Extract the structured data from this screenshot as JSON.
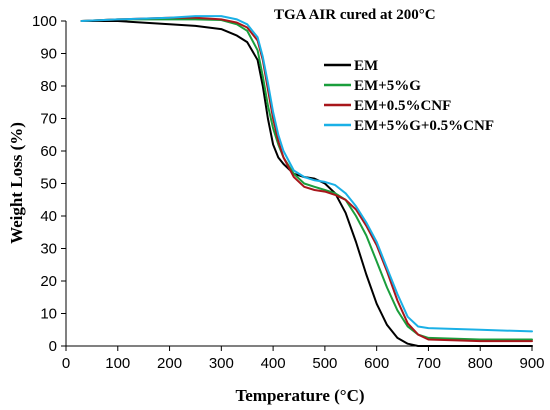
{
  "chart_data": {
    "type": "line",
    "title": "TGA AIR cured at 200°C",
    "xlabel": "Temperature (°C)",
    "ylabel": "Weight Loss (%)",
    "xlim": [
      0,
      900
    ],
    "ylim": [
      0,
      100
    ],
    "xticks": [
      0,
      100,
      200,
      300,
      400,
      500,
      600,
      700,
      800,
      900
    ],
    "yticks": [
      0,
      10,
      20,
      30,
      40,
      50,
      60,
      70,
      80,
      90,
      100
    ],
    "grid": false,
    "legend_position": "top-right",
    "series": [
      {
        "name": "EM",
        "color": "#000000",
        "x": [
          30,
          100,
          200,
          250,
          300,
          330,
          350,
          370,
          380,
          390,
          400,
          410,
          420,
          440,
          460,
          480,
          500,
          520,
          540,
          560,
          580,
          600,
          620,
          640,
          660,
          680,
          700,
          800,
          900
        ],
        "y": [
          100,
          100,
          99,
          98.5,
          97.5,
          95.5,
          93.5,
          88,
          80,
          70,
          62,
          58,
          56,
          53,
          52,
          51.5,
          50,
          47,
          41,
          32,
          22,
          13,
          6.5,
          2.5,
          0.7,
          0,
          0,
          0,
          0
        ]
      },
      {
        "name": "EM+5%G",
        "color": "#1a9e3c",
        "x": [
          30,
          100,
          200,
          250,
          300,
          330,
          350,
          370,
          380,
          390,
          400,
          410,
          420,
          440,
          460,
          480,
          500,
          520,
          540,
          560,
          580,
          600,
          620,
          640,
          660,
          680,
          700,
          800,
          900
        ],
        "y": [
          100,
          100.5,
          100.5,
          100.5,
          100.3,
          99,
          97,
          91,
          83,
          74,
          67,
          62,
          58,
          53,
          50,
          49,
          48,
          47,
          45,
          40,
          34,
          26,
          18,
          11,
          6,
          3.5,
          2.5,
          2,
          2
        ]
      },
      {
        "name": "EM+0.5%CNF",
        "color": "#a8161b",
        "x": [
          30,
          100,
          200,
          250,
          300,
          330,
          350,
          370,
          380,
          390,
          400,
          410,
          420,
          440,
          460,
          480,
          500,
          520,
          540,
          560,
          580,
          600,
          620,
          640,
          660,
          680,
          700,
          800,
          900
        ],
        "y": [
          100,
          100.5,
          101,
          101,
          100.5,
          99.5,
          98,
          94,
          88,
          79,
          70,
          63,
          58,
          52,
          49,
          48,
          47.5,
          46.5,
          45,
          42,
          37,
          31,
          23,
          14,
          7,
          3.5,
          2,
          1.5,
          1.5
        ]
      },
      {
        "name": "EM+5%G+0.5%CNF",
        "color": "#1ab0e6",
        "x": [
          30,
          100,
          200,
          250,
          300,
          330,
          350,
          370,
          380,
          390,
          400,
          410,
          420,
          440,
          460,
          480,
          500,
          520,
          540,
          560,
          580,
          600,
          620,
          640,
          660,
          680,
          700,
          800,
          900
        ],
        "y": [
          100,
          100.5,
          101,
          101.5,
          101.5,
          100.5,
          99,
          95,
          89,
          81,
          72,
          65,
          60,
          54,
          52,
          51,
          50.5,
          49.5,
          47,
          43,
          38,
          32,
          24,
          16,
          9,
          6,
          5.5,
          5,
          4.5
        ]
      }
    ]
  }
}
